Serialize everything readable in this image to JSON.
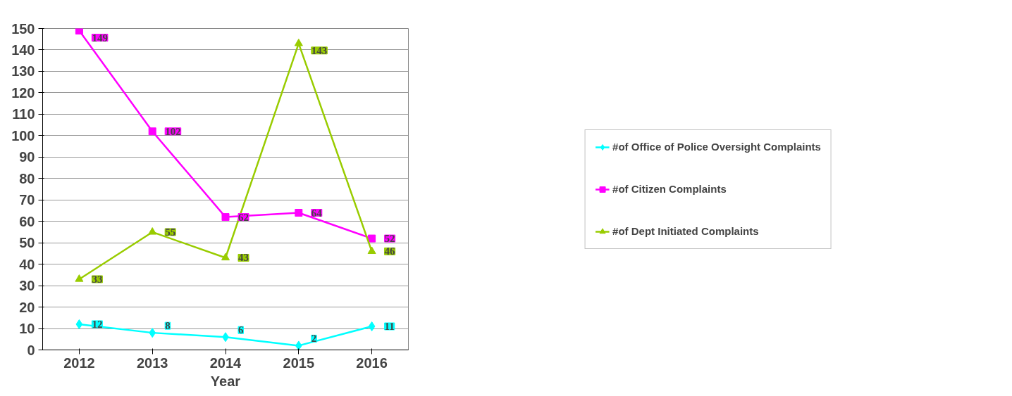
{
  "chart_data": {
    "type": "line",
    "xlabel": "Year",
    "categories": [
      "2012",
      "2013",
      "2014",
      "2015",
      "2016"
    ],
    "ylim": [
      0,
      150
    ],
    "yticks": [
      0,
      10,
      20,
      30,
      40,
      50,
      60,
      70,
      80,
      90,
      100,
      110,
      120,
      130,
      140,
      150
    ],
    "grid": "y",
    "legend": "right",
    "data_labels": true,
    "series": [
      {
        "name": "#of Office of Police Oversight Complaints",
        "color": "#00ffff",
        "marker": "diamond",
        "values": [
          12,
          8,
          6,
          2,
          11
        ]
      },
      {
        "name": "#of Citizen Complaints",
        "color": "#ff00ff",
        "marker": "square",
        "values": [
          149,
          102,
          62,
          64,
          52
        ]
      },
      {
        "name": "#of Dept Initiated Complaints",
        "color": "#99cc00",
        "marker": "triangle",
        "values": [
          33,
          55,
          43,
          143,
          46
        ]
      }
    ]
  }
}
